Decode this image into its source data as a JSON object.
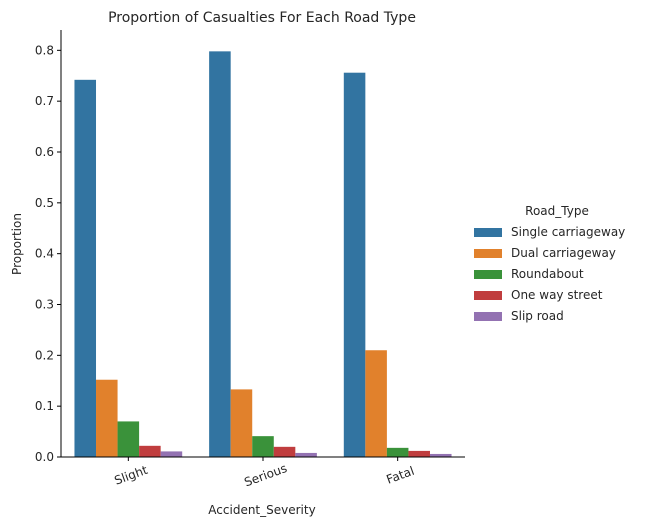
{
  "chart_data": {
    "type": "bar",
    "title": "Proportion of Casualties For Each Road Type",
    "xlabel": "Accident_Severity",
    "ylabel": "Proportion",
    "ylim": [
      0,
      0.84
    ],
    "yticks": [
      "0.0",
      "0.1",
      "0.2",
      "0.3",
      "0.4",
      "0.5",
      "0.6",
      "0.7",
      "0.8"
    ],
    "categories": [
      "Slight",
      "Serious",
      "Fatal"
    ],
    "legend_title": "Road_Type",
    "legend_position": "right",
    "grid": false,
    "series": [
      {
        "name": "Single carriageway",
        "color": "#3274a1",
        "values": [
          0.742,
          0.798,
          0.756
        ]
      },
      {
        "name": "Dual carriageway",
        "color": "#e1812c",
        "values": [
          0.152,
          0.133,
          0.21
        ]
      },
      {
        "name": "Roundabout",
        "color": "#3a923a",
        "values": [
          0.07,
          0.041,
          0.018
        ]
      },
      {
        "name": "One way street",
        "color": "#c03d3e",
        "values": [
          0.022,
          0.02,
          0.012
        ]
      },
      {
        "name": "Slip road",
        "color": "#9372b2",
        "values": [
          0.011,
          0.008,
          0.006
        ]
      }
    ]
  }
}
